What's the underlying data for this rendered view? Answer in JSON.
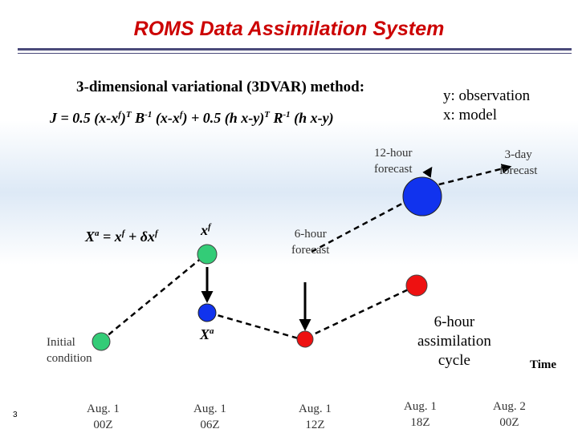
{
  "title": "ROMS Data Assimilation System",
  "method": "3-dimensional variational (3DVAR) method:",
  "formula": {
    "p1": "J = 0.5 (x-x",
    "s1": "f",
    "p2": ")",
    "s2": "T",
    "p3": " B",
    "s3": "-1",
    "p4": " (x-x",
    "s4": "f",
    "p5": ") + 0.5 (h x-y)",
    "s5": "T",
    "p6": " R",
    "s6": "-1",
    "p7": " (h x-y)"
  },
  "legend": {
    "line1": "y: observation",
    "line2": "x: model"
  },
  "labels": {
    "forecast12_l1": "12-hour",
    "forecast12_l2": "forecast",
    "forecast3d_l1": "3-day",
    "forecast3d_l2": "forecast",
    "forecast6_l1": "6-hour",
    "forecast6_l2": "forecast",
    "initial_l1": "Initial",
    "initial_l2": "condition",
    "cycle_l1": "6-hour",
    "cycle_l2": "assimilation",
    "cycle_l3": "cycle",
    "time": "Time"
  },
  "equation": {
    "xa": "X",
    "a": "a",
    "mid": " = x",
    "f1": "f",
    "plus": " + δx",
    "f2": "f"
  },
  "xf_label": {
    "base": "x",
    "sup": "f"
  },
  "xa_label": {
    "base": "X",
    "sup": "a"
  },
  "dates": [
    {
      "day": "Aug. 1",
      "hour": "00Z"
    },
    {
      "day": "Aug. 1",
      "hour": "06Z"
    },
    {
      "day": "Aug. 1",
      "hour": "12Z"
    },
    {
      "day": "Aug. 1",
      "hour": "18Z"
    },
    {
      "day": "Aug. 2",
      "hour": "00Z"
    }
  ],
  "slide_number": "3",
  "colors": {
    "title": "#cc0000",
    "initial": "#33cc77",
    "forecast_green": "#33cc77",
    "analysis_blue": "#1133ee",
    "forecast_red": "#ee1111",
    "big_blue": "#1133ee"
  }
}
